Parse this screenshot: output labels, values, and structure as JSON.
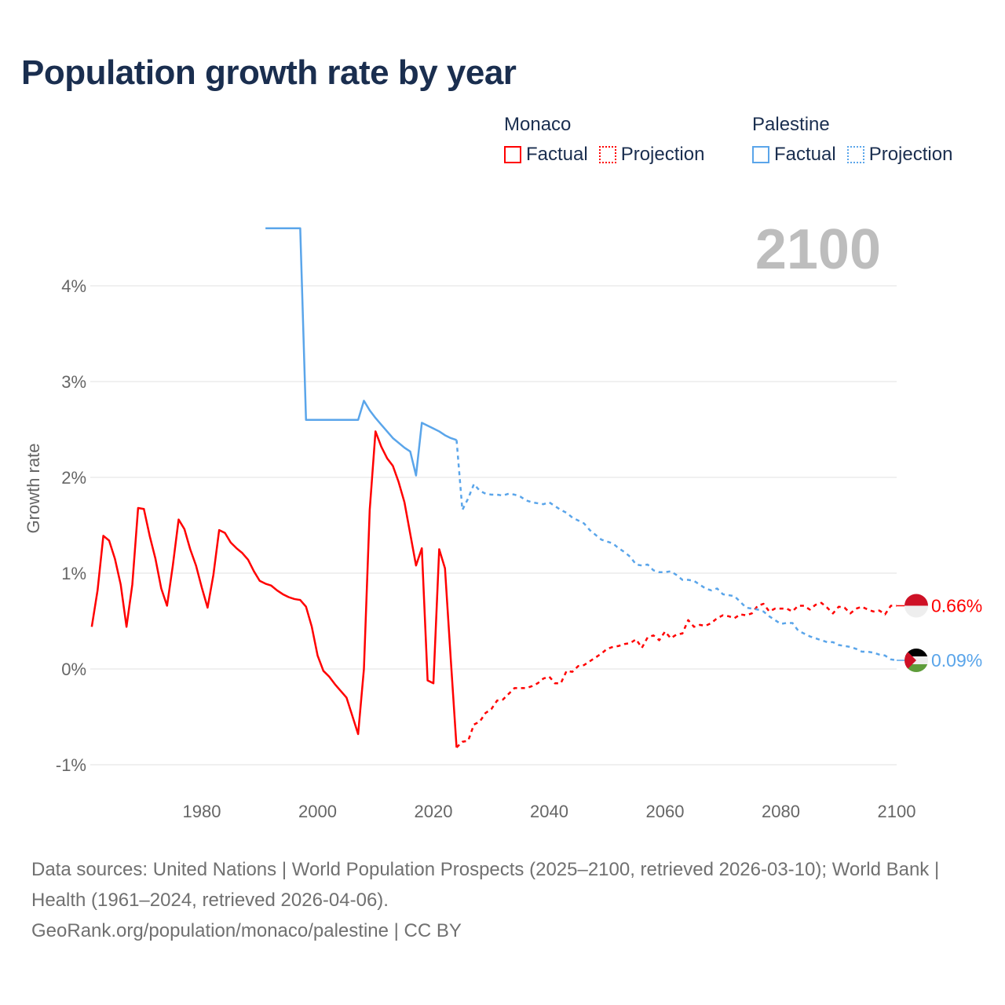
{
  "title": "Population growth rate by year",
  "legend": [
    {
      "name": "Monaco",
      "factual_label": "Factual",
      "projection_label": "Projection",
      "color": "#ff0000"
    },
    {
      "name": "Palestine",
      "factual_label": "Factual",
      "projection_label": "Projection",
      "color": "#5aa5ea"
    }
  ],
  "chart_data": {
    "type": "line",
    "title": "Population growth rate by year",
    "xlabel": "",
    "ylabel": "Growth rate",
    "xlim": [
      1961,
      2100
    ],
    "ylim": [
      -1.2,
      4.7
    ],
    "x_ticks": [
      "1980",
      "2000",
      "2020",
      "2040",
      "2060",
      "2080",
      "2100"
    ],
    "x_tick_values": [
      1980,
      2000,
      2020,
      2040,
      2060,
      2080,
      2100
    ],
    "y_ticks": [
      "4%",
      "3%",
      "2%",
      "1%",
      "0%",
      "-1%"
    ],
    "y_tick_values": [
      4,
      3,
      2,
      1,
      0,
      -1
    ],
    "year_label": "2100",
    "grid": true,
    "series": [
      {
        "name": "Monaco",
        "kind": "factual",
        "start": 1961,
        "values": [
          0.44,
          0.82,
          1.39,
          1.34,
          1.15,
          0.88,
          0.44,
          0.88,
          1.68,
          1.67,
          1.39,
          1.15,
          0.84,
          0.66,
          1.08,
          1.56,
          1.46,
          1.25,
          1.08,
          0.85,
          0.64,
          0.98,
          1.45,
          1.42,
          1.32,
          1.26,
          1.21,
          1.14,
          1.02,
          0.92,
          0.89,
          0.87,
          0.82,
          0.78,
          0.75,
          0.73,
          0.72,
          0.65,
          0.44,
          0.14,
          -0.02,
          -0.08,
          -0.16,
          -0.23,
          -0.3,
          -0.49,
          -0.68,
          0.0,
          1.66,
          2.48,
          2.32,
          2.2,
          2.12,
          1.95,
          1.74,
          1.41,
          1.08,
          1.26,
          -0.12,
          -0.15,
          1.25,
          1.05,
          0.1,
          -0.82
        ]
      },
      {
        "name": "Monaco",
        "kind": "projection",
        "start": 2025,
        "values": [
          -0.76,
          -0.75,
          -0.58,
          -0.55,
          -0.46,
          -0.42,
          -0.33,
          -0.32,
          -0.26,
          -0.2,
          -0.2,
          -0.2,
          -0.18,
          -0.15,
          -0.1,
          -0.08,
          -0.15,
          -0.15,
          -0.02,
          -0.03,
          0.03,
          0.04,
          0.08,
          0.12,
          0.16,
          0.21,
          0.23,
          0.24,
          0.26,
          0.27,
          0.31,
          0.22,
          0.33,
          0.35,
          0.3,
          0.39,
          0.32,
          0.36,
          0.37,
          0.51,
          0.44,
          0.46,
          0.45,
          0.48,
          0.53,
          0.56,
          0.55,
          0.53,
          0.57,
          0.56,
          0.58,
          0.66,
          0.68,
          0.6,
          0.63,
          0.63,
          0.63,
          0.6,
          0.66,
          0.66,
          0.62,
          0.67,
          0.69,
          0.64,
          0.58,
          0.65,
          0.64,
          0.58,
          0.63,
          0.65,
          0.62,
          0.6,
          0.61,
          0.57,
          0.66,
          0.66
        ]
      },
      {
        "name": "Palestine",
        "kind": "factual",
        "start": 1991,
        "values": [
          4.6,
          4.6,
          4.6,
          4.6,
          4.6,
          4.6,
          4.6,
          2.6,
          2.6,
          2.6,
          2.6,
          2.6,
          2.6,
          2.6,
          2.6,
          2.6,
          2.6,
          2.8,
          2.7,
          2.62,
          2.55,
          2.48,
          2.41,
          2.36,
          2.31,
          2.27,
          2.02,
          2.57,
          2.54,
          2.51,
          2.48,
          2.44,
          2.41,
          2.39
        ]
      },
      {
        "name": "Palestine",
        "kind": "projection",
        "start": 2025,
        "values": [
          1.66,
          1.78,
          1.93,
          1.86,
          1.83,
          1.82,
          1.82,
          1.81,
          1.83,
          1.82,
          1.8,
          1.76,
          1.74,
          1.73,
          1.72,
          1.74,
          1.7,
          1.66,
          1.63,
          1.58,
          1.55,
          1.52,
          1.45,
          1.4,
          1.35,
          1.33,
          1.31,
          1.26,
          1.22,
          1.17,
          1.09,
          1.08,
          1.09,
          1.03,
          1.01,
          1.01,
          1.02,
          0.98,
          0.93,
          0.93,
          0.92,
          0.88,
          0.84,
          0.82,
          0.84,
          0.78,
          0.77,
          0.76,
          0.7,
          0.64,
          0.63,
          0.62,
          0.6,
          0.55,
          0.51,
          0.47,
          0.48,
          0.48,
          0.4,
          0.37,
          0.34,
          0.32,
          0.3,
          0.28,
          0.28,
          0.25,
          0.24,
          0.23,
          0.21,
          0.18,
          0.18,
          0.17,
          0.15,
          0.14,
          0.1,
          0.09
        ]
      }
    ],
    "end_labels": [
      {
        "name": "Monaco",
        "text": "0.66%",
        "value": 0.66,
        "color": "#ff0000"
      },
      {
        "name": "Palestine",
        "text": "0.09%",
        "value": 0.09,
        "color": "#5aa5ea"
      }
    ]
  },
  "footer": {
    "line1": "Data sources: United Nations | World Population Prospects (2025–2100, retrieved 2026-03-10); World Bank | Health (1961–2024, retrieved 2026-04-06).",
    "line2": "GeoRank.org/population/monaco/palestine | CC BY"
  }
}
